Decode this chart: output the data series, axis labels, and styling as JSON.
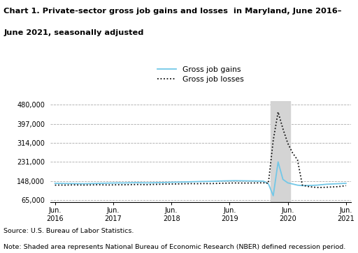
{
  "title_line1": "Chart 1. Private-sector gross job gains and losses  in Maryland, June 2016–",
  "title_line2": "June 2021, seasonally adjusted",
  "source": "Source: U.S. Bureau of Labor Statistics.",
  "note": "Note: Shaded area represents National Bureau of Economic Research (NBER) defined recession period.",
  "yticks": [
    65000,
    148000,
    231000,
    314000,
    397000,
    480000
  ],
  "ylim": [
    55000,
    495000
  ],
  "xtick_positions": [
    0,
    12,
    24,
    36,
    48,
    60
  ],
  "xtick_labels": [
    "Jun.\n2016",
    "Jun.\n2017",
    "Jun.\n2018",
    "Jun.\n2019",
    "Jun.\n2020",
    "Jun.\n2021"
  ],
  "recession_start": 44.5,
  "recession_end": 48.5,
  "gains_color": "#72C8E8",
  "losses_color": "#111111",
  "shading_color": "#D4D4D4",
  "gains_data_x": [
    0,
    1,
    2,
    3,
    4,
    5,
    6,
    7,
    8,
    9,
    10,
    11,
    12,
    13,
    14,
    15,
    16,
    17,
    18,
    19,
    20,
    21,
    22,
    23,
    24,
    25,
    26,
    27,
    28,
    29,
    30,
    31,
    32,
    33,
    34,
    35,
    36,
    37,
    38,
    39,
    40,
    41,
    42,
    43,
    44,
    45,
    46,
    47,
    48,
    49,
    50,
    51,
    52,
    53,
    54,
    55,
    56,
    57,
    58,
    59,
    60
  ],
  "gains_data_y": [
    138000,
    137500,
    137200,
    137000,
    136800,
    136500,
    136200,
    136800,
    137200,
    137800,
    138200,
    138800,
    139200,
    139800,
    139500,
    140000,
    140500,
    140800,
    140200,
    139800,
    140200,
    140800,
    141200,
    141800,
    142500,
    143000,
    143500,
    144000,
    144800,
    145200,
    145800,
    146000,
    146500,
    147000,
    148000,
    148500,
    149000,
    149500,
    149200,
    148800,
    148500,
    148200,
    147800,
    147200,
    136000,
    84000,
    231000,
    155000,
    140000,
    135000,
    130000,
    128000,
    128500,
    129000,
    130000,
    132000,
    134000,
    135000,
    136000,
    137000,
    138000
  ],
  "losses_data_x": [
    0,
    1,
    2,
    3,
    4,
    5,
    6,
    7,
    8,
    9,
    10,
    11,
    12,
    13,
    14,
    15,
    16,
    17,
    18,
    19,
    20,
    21,
    22,
    23,
    24,
    25,
    26,
    27,
    28,
    29,
    30,
    31,
    32,
    33,
    34,
    35,
    36,
    37,
    38,
    39,
    40,
    41,
    42,
    43,
    44,
    45,
    46,
    47,
    48,
    49,
    50,
    51,
    52,
    53,
    54,
    55,
    56,
    57,
    58,
    59,
    60
  ],
  "losses_data_y": [
    130000,
    130500,
    130200,
    130800,
    131200,
    130800,
    130500,
    130800,
    131200,
    131800,
    131200,
    130800,
    131200,
    131800,
    131500,
    132000,
    132500,
    133000,
    132500,
    132000,
    133000,
    133500,
    134000,
    134500,
    135000,
    135200,
    135800,
    136200,
    136800,
    136200,
    136800,
    137200,
    136800,
    137200,
    138000,
    138500,
    139000,
    139500,
    139200,
    139000,
    139200,
    139500,
    140000,
    140200,
    138200,
    325000,
    448000,
    375000,
    312000,
    270000,
    240000,
    130000,
    125000,
    122000,
    120000,
    120000,
    121000,
    122000,
    123000,
    125000,
    128000
  ]
}
